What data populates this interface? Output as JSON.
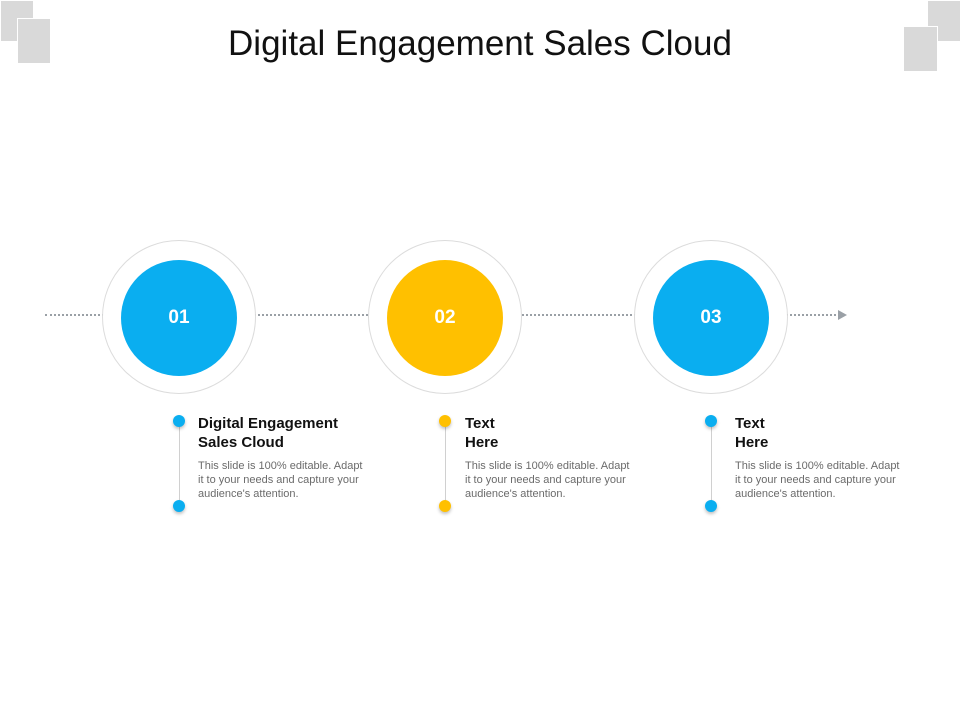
{
  "title": "Digital Engagement Sales Cloud",
  "colors": {
    "blue": "#0aaef0",
    "yellow": "#ffc000",
    "ring": "#dcdcdc",
    "line": "#9aa0a6"
  },
  "steps": [
    {
      "number": "01",
      "color": "#0aaef0",
      "title_line1": "Digital Engagement",
      "title_line2": "Sales Cloud",
      "desc_line1": "This slide is 100% editable. Adapt",
      "desc_line2": "it to your needs and capture your",
      "desc_line3": "audience's attention."
    },
    {
      "number": "02",
      "color": "#ffc000",
      "title_line1": "Text",
      "title_line2": "Here",
      "desc_line1": "This slide is 100% editable. Adapt",
      "desc_line2": "it to your needs and capture your",
      "desc_line3": "audience's attention."
    },
    {
      "number": "03",
      "color": "#0aaef0",
      "title_line1": "Text",
      "title_line2": "Here",
      "desc_line1": "This slide is 100% editable. Adapt",
      "desc_line2": "it to your needs and capture your",
      "desc_line3": "audience's attention."
    }
  ]
}
